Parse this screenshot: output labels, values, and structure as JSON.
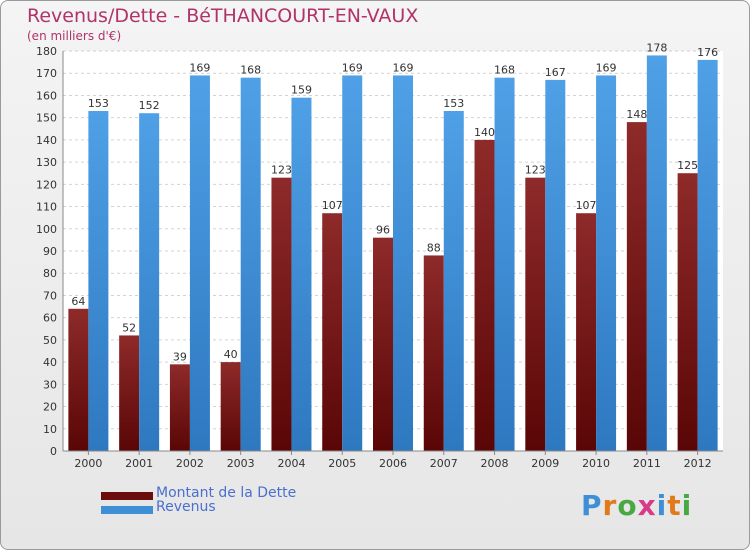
{
  "title": "Revenus/Dette - BéTHANCOURT-EN-VAUX",
  "subtitle": "(en milliers d'€)",
  "logo_text": "Proxiti",
  "colors": {
    "dette": "#7a1c1c",
    "revenus": "#3e8fd6",
    "title": "#b0336a",
    "legend_text": "#4a6fd0"
  },
  "legend": [
    {
      "label": "Montant de la Dette",
      "color": "#6b0d0d"
    },
    {
      "label": "Revenus",
      "color": "#3e8fd6"
    }
  ],
  "chart_data": {
    "type": "bar",
    "title": "Revenus/Dette - BéTHANCOURT-EN-VAUX",
    "subtitle": "(en milliers d'€)",
    "categories": [
      "2000",
      "2001",
      "2002",
      "2003",
      "2004",
      "2005",
      "2006",
      "2007",
      "2008",
      "2009",
      "2010",
      "2011",
      "2012"
    ],
    "series": [
      {
        "name": "Montant de la Dette",
        "values": [
          64,
          52,
          39,
          40,
          123,
          107,
          96,
          88,
          140,
          123,
          107,
          148,
          125
        ]
      },
      {
        "name": "Revenus",
        "values": [
          153,
          152,
          169,
          168,
          159,
          169,
          169,
          153,
          168,
          167,
          169,
          178,
          176
        ]
      }
    ],
    "ylim": [
      0,
      180
    ],
    "yticks": [
      0,
      10,
      20,
      30,
      40,
      50,
      60,
      70,
      80,
      90,
      100,
      110,
      120,
      130,
      140,
      150,
      160,
      170,
      180
    ],
    "grid": true,
    "legend_position": "bottom-left"
  }
}
